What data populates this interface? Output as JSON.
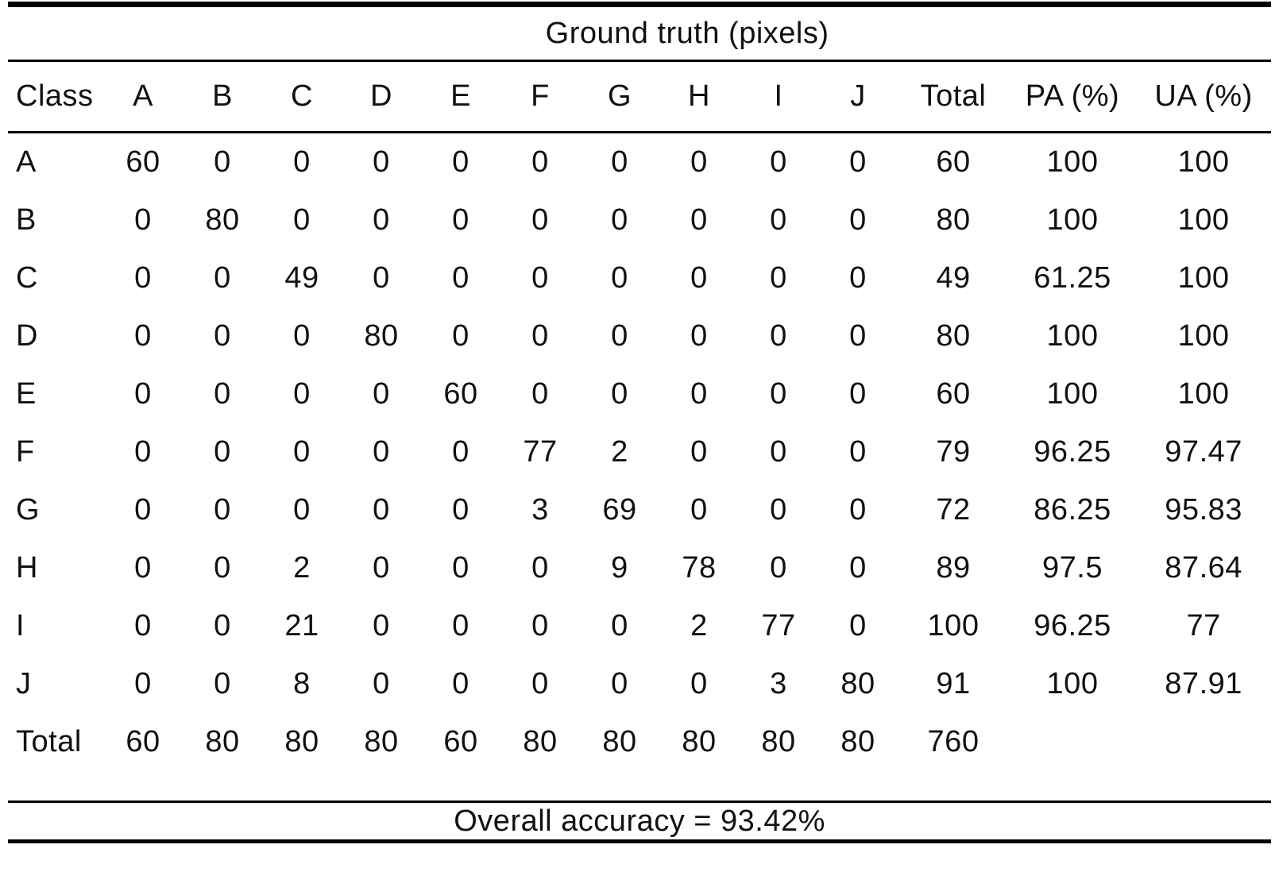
{
  "table": {
    "group_header": "Ground truth (pixels)",
    "columns": [
      "Class",
      "A",
      "B",
      "C",
      "D",
      "E",
      "F",
      "G",
      "H",
      "I",
      "J",
      "Total",
      "PA (%)",
      "UA (%)"
    ],
    "rows": [
      {
        "label": "A",
        "values": [
          "60",
          "0",
          "0",
          "0",
          "0",
          "0",
          "0",
          "0",
          "0",
          "0",
          "60",
          "100",
          "100"
        ]
      },
      {
        "label": "B",
        "values": [
          "0",
          "80",
          "0",
          "0",
          "0",
          "0",
          "0",
          "0",
          "0",
          "0",
          "80",
          "100",
          "100"
        ]
      },
      {
        "label": "C",
        "values": [
          "0",
          "0",
          "49",
          "0",
          "0",
          "0",
          "0",
          "0",
          "0",
          "0",
          "49",
          "61.25",
          "100"
        ]
      },
      {
        "label": "D",
        "values": [
          "0",
          "0",
          "0",
          "80",
          "0",
          "0",
          "0",
          "0",
          "0",
          "0",
          "80",
          "100",
          "100"
        ]
      },
      {
        "label": "E",
        "values": [
          "0",
          "0",
          "0",
          "0",
          "60",
          "0",
          "0",
          "0",
          "0",
          "0",
          "60",
          "100",
          "100"
        ]
      },
      {
        "label": "F",
        "values": [
          "0",
          "0",
          "0",
          "0",
          "0",
          "77",
          "2",
          "0",
          "0",
          "0",
          "79",
          "96.25",
          "97.47"
        ]
      },
      {
        "label": "G",
        "values": [
          "0",
          "0",
          "0",
          "0",
          "0",
          "3",
          "69",
          "0",
          "0",
          "0",
          "72",
          "86.25",
          "95.83"
        ]
      },
      {
        "label": "H",
        "values": [
          "0",
          "0",
          "2",
          "0",
          "0",
          "0",
          "9",
          "78",
          "0",
          "0",
          "89",
          "97.5",
          "87.64"
        ]
      },
      {
        "label": "I",
        "values": [
          "0",
          "0",
          "21",
          "0",
          "0",
          "0",
          "0",
          "2",
          "77",
          "0",
          "100",
          "96.25",
          "77"
        ]
      },
      {
        "label": "J",
        "values": [
          "0",
          "0",
          "8",
          "0",
          "0",
          "0",
          "0",
          "0",
          "3",
          "80",
          "91",
          "100",
          "87.91"
        ]
      },
      {
        "label": "Total",
        "values": [
          "60",
          "80",
          "80",
          "80",
          "60",
          "80",
          "80",
          "80",
          "80",
          "80",
          "760",
          "",
          ""
        ]
      }
    ],
    "footer": "Overall accuracy = 93.42%"
  }
}
